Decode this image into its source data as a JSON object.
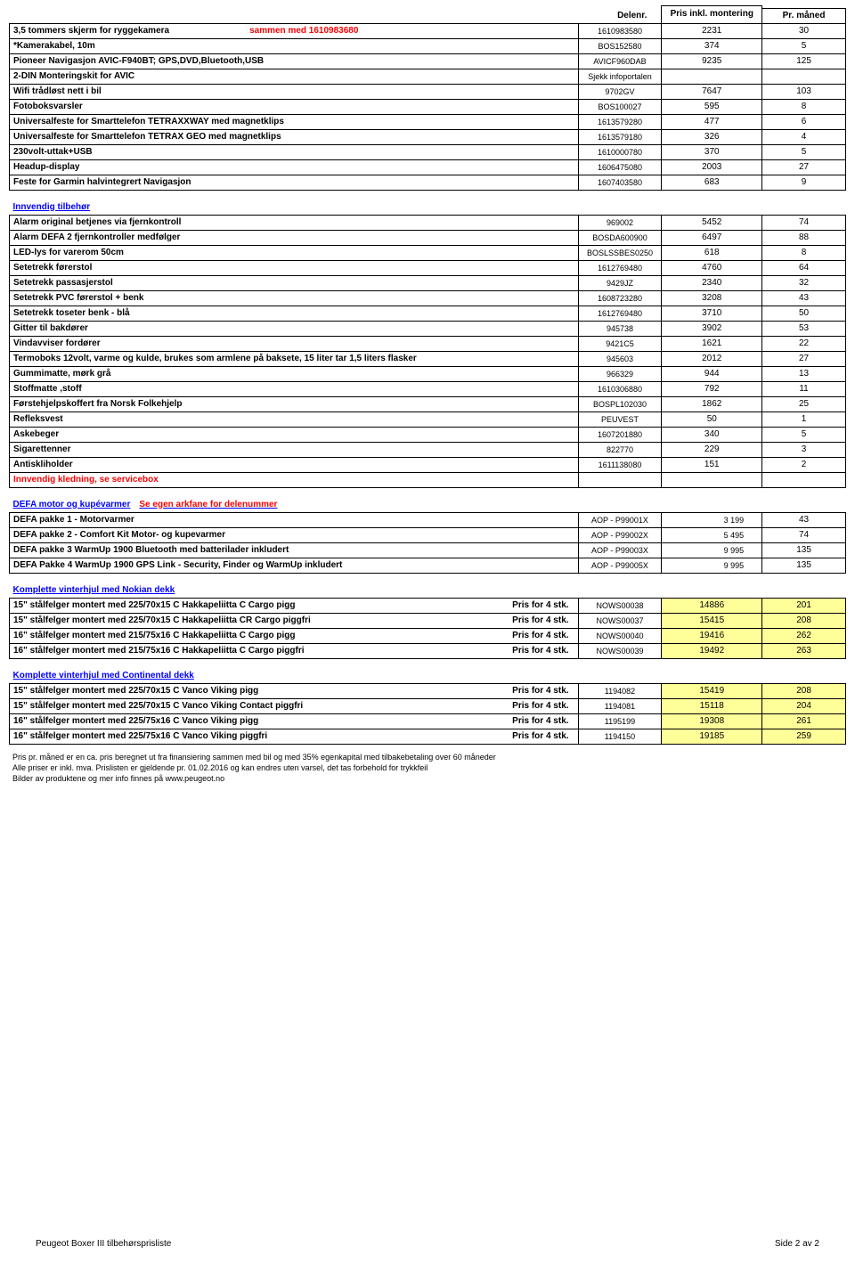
{
  "colors": {
    "highlight": "#ffff99",
    "red": "#ff0000",
    "blue": "#0000ff",
    "border": "#000000",
    "background": "#ffffff"
  },
  "header": {
    "col_part": "Delenr.",
    "col_price": "Pris inkl. montering",
    "col_month": "Pr. måned"
  },
  "sections": [
    {
      "rows": [
        {
          "desc": "3,5 tommers skjerm for ryggekamera",
          "desc_suffix_red": "sammen med 1610983680",
          "part": "1610983580",
          "price": "2231",
          "month": "30"
        },
        {
          "desc": "*Kamerakabel, 10m",
          "part": "BOS152580",
          "price": "374",
          "month": "5"
        },
        {
          "desc": "Pioneer Navigasjon AVIC-F940BT; GPS,DVD,Bluetooth,USB",
          "part": "AVICF960DAB",
          "price": "9235",
          "month": "125"
        },
        {
          "desc": "2-DIN Monteringskit for AVIC",
          "part": "Sjekk infoportalen",
          "price": "",
          "month": ""
        },
        {
          "desc": "Wifi trådløst nett i bil",
          "part": "9702GV",
          "price": "7647",
          "month": "103"
        },
        {
          "desc": "Fotoboksvarsler",
          "part": "BOS100027",
          "price": "595",
          "month": "8"
        },
        {
          "desc": "Universalfeste for Smarttelefon TETRAXXWAY med magnetklips",
          "part": "1613579280",
          "price": "477",
          "month": "6"
        },
        {
          "desc": "Universalfeste for Smarttelefon TETRAX GEO med magnetklips",
          "part": "1613579180",
          "price": "326",
          "month": "4"
        },
        {
          "desc": "230volt-uttak+USB",
          "part": "1610000780",
          "price": "370",
          "month": "5"
        },
        {
          "desc": "Headup-display",
          "part": "1606475080",
          "price": "2003",
          "month": "27"
        },
        {
          "desc": "Feste for Garmin halvintegrert Navigasjon",
          "part": "1607403580",
          "price": "683",
          "month": "9"
        }
      ]
    },
    {
      "title": "Innvendig tilbehør",
      "rows": [
        {
          "desc": "Alarm original  betjenes via fjernkontroll",
          "part": "969002",
          "price": "5452",
          "month": "74"
        },
        {
          "desc": "Alarm DEFA 2 fjernkontroller medfølger",
          "part": "BOSDA600900",
          "price": "6497",
          "month": "88"
        },
        {
          "desc": "LED-lys for varerom    50cm",
          "part": "BOSLSSBES0250",
          "price": "618",
          "month": "8"
        },
        {
          "desc": "Setetrekk førerstol",
          "part": "1612769480",
          "price": "4760",
          "month": "64"
        },
        {
          "desc": "Setetrekk passasjerstol",
          "part": "9429JZ",
          "price": "2340",
          "month": "32"
        },
        {
          "desc": "Setetrekk PVC førerstol + benk",
          "part": "1608723280",
          "price": "3208",
          "month": "43"
        },
        {
          "desc": "Setetrekk toseter benk - blå",
          "part": "1612769480",
          "price": "3710",
          "month": "50"
        },
        {
          "desc": "Gitter til bakdører",
          "part": "945738",
          "price": "3902",
          "month": "53"
        },
        {
          "desc": "Vindavviser fordører",
          "part": "9421C5",
          "price": "1621",
          "month": "22"
        },
        {
          "desc": "Termoboks 12volt, varme og kulde, brukes som armlene på baksete, 15 liter tar 1,5 liters flasker",
          "part": "945603",
          "price": "2012",
          "month": "27"
        },
        {
          "desc": "Gummimatte, mørk grå",
          "part": "966329",
          "price": "944",
          "month": "13"
        },
        {
          "desc": "Stoffmatte ,stoff",
          "part": "1610306880",
          "price": "792",
          "month": "11"
        },
        {
          "desc": "Førstehjelpskoffert fra Norsk Folkehjelp",
          "part": "BOSPL102030",
          "price": "1862",
          "month": "25"
        },
        {
          "desc": "Refleksvest",
          "part": "PEUVEST",
          "price": "50",
          "month": "1"
        },
        {
          "desc": "Askebeger",
          "part": "1607201880",
          "price": "340",
          "month": "5"
        },
        {
          "desc": "Sigarettenner",
          "part": "822770",
          "price": "229",
          "month": "3"
        },
        {
          "desc": "Antiskliholder",
          "part": "1611138080",
          "price": "151",
          "month": "2"
        }
      ],
      "note_red": "Innvendig kledning, se servicebox"
    },
    {
      "title": "DEFA motor og kupévarmer",
      "title_suffix_red": "Se egen arkfane for delenummer",
      "rows": [
        {
          "desc": "DEFA pakke 1 - Motorvarmer",
          "part": "AOP - P99001X",
          "price": "3 199",
          "month": "43"
        },
        {
          "desc": "DEFA pakke 2 - Comfort Kit Motor- og kupevarmer",
          "part": "AOP - P99002X",
          "price": "5 495",
          "month": "74"
        },
        {
          "desc": "DEFA pakke 3 WarmUp 1900 Bluetooth med batterilader inkludert",
          "part": "AOP - P99003X",
          "price": "9 995",
          "month": "135"
        },
        {
          "desc": "DEFA Pakke 4 WarmUp 1900 GPS Link - Security, Finder og WarmUp inkludert",
          "part": "AOP - P99005X",
          "price": "9 995",
          "month": "135"
        }
      ],
      "price_align": "right"
    },
    {
      "title": "Komplette vinterhjul med Nokian dekk",
      "highlight": true,
      "price_note": "Pris for 4 stk.",
      "rows": [
        {
          "desc": "15\" stålfelger montert med 225/70x15 C Hakkapeliitta  C Cargo  pigg",
          "part": "NOWS00038",
          "price": "14886",
          "month": "201"
        },
        {
          "desc": "15\" stålfelger montert med 225/70x15 C Hakkapeliitta  CR Cargo  piggfri",
          "part": "NOWS00037",
          "price": "15415",
          "month": "208"
        },
        {
          "desc": "16\" stålfelger montert med 215/75x16 C Hakkapeliitta  C Cargo  pigg",
          "part": "NOWS00040",
          "price": "19416",
          "month": "262"
        },
        {
          "desc": "16\" stålfelger montert med 215/75x16 C Hakkapeliitta  C Cargo  piggfri",
          "part": "NOWS00039",
          "price": "19492",
          "month": "263"
        }
      ]
    },
    {
      "title": "Komplette vinterhjul med Continental dekk",
      "highlight": true,
      "price_note": "Pris for 4 stk.",
      "rows": [
        {
          "desc": "15\" stålfelger montert med 225/70x15 C Vanco Viking   pigg",
          "part": "1194082",
          "price": "15419",
          "month": "208"
        },
        {
          "desc": "15\" stålfelger montert med 225/70x15 C Vanco Viking  Contact piggfri",
          "part": "1194081",
          "price": "15118",
          "month": "204"
        },
        {
          "desc": "16\" stålfelger montert med 225/75x16 C  Vanco Viking pigg",
          "part": "1195199",
          "price": "19308",
          "month": "261"
        },
        {
          "desc": "16\" stålfelger montert med 225/75x16 C  Vanco Viking  piggfri",
          "part": "1194150",
          "price": "19185",
          "month": "259"
        }
      ]
    }
  ],
  "disclaimer": [
    "Pris pr. måned er en ca. pris beregnet ut fra  finansiering sammen med bil og med 35% egenkapital med tilbakebetaling over 60 måneder",
    "Alle priser er inkl. mva. Prislisten er gjeldende pr. 01.02.2016 og kan endres uten varsel, det tas forbehold for trykkfeil",
    "Bilder av produktene og mer info finnes på www.peugeot.no"
  ],
  "footer": {
    "left": "Peugeot Boxer III tilbehørsprisliste",
    "right": "Side 2 av 2"
  }
}
